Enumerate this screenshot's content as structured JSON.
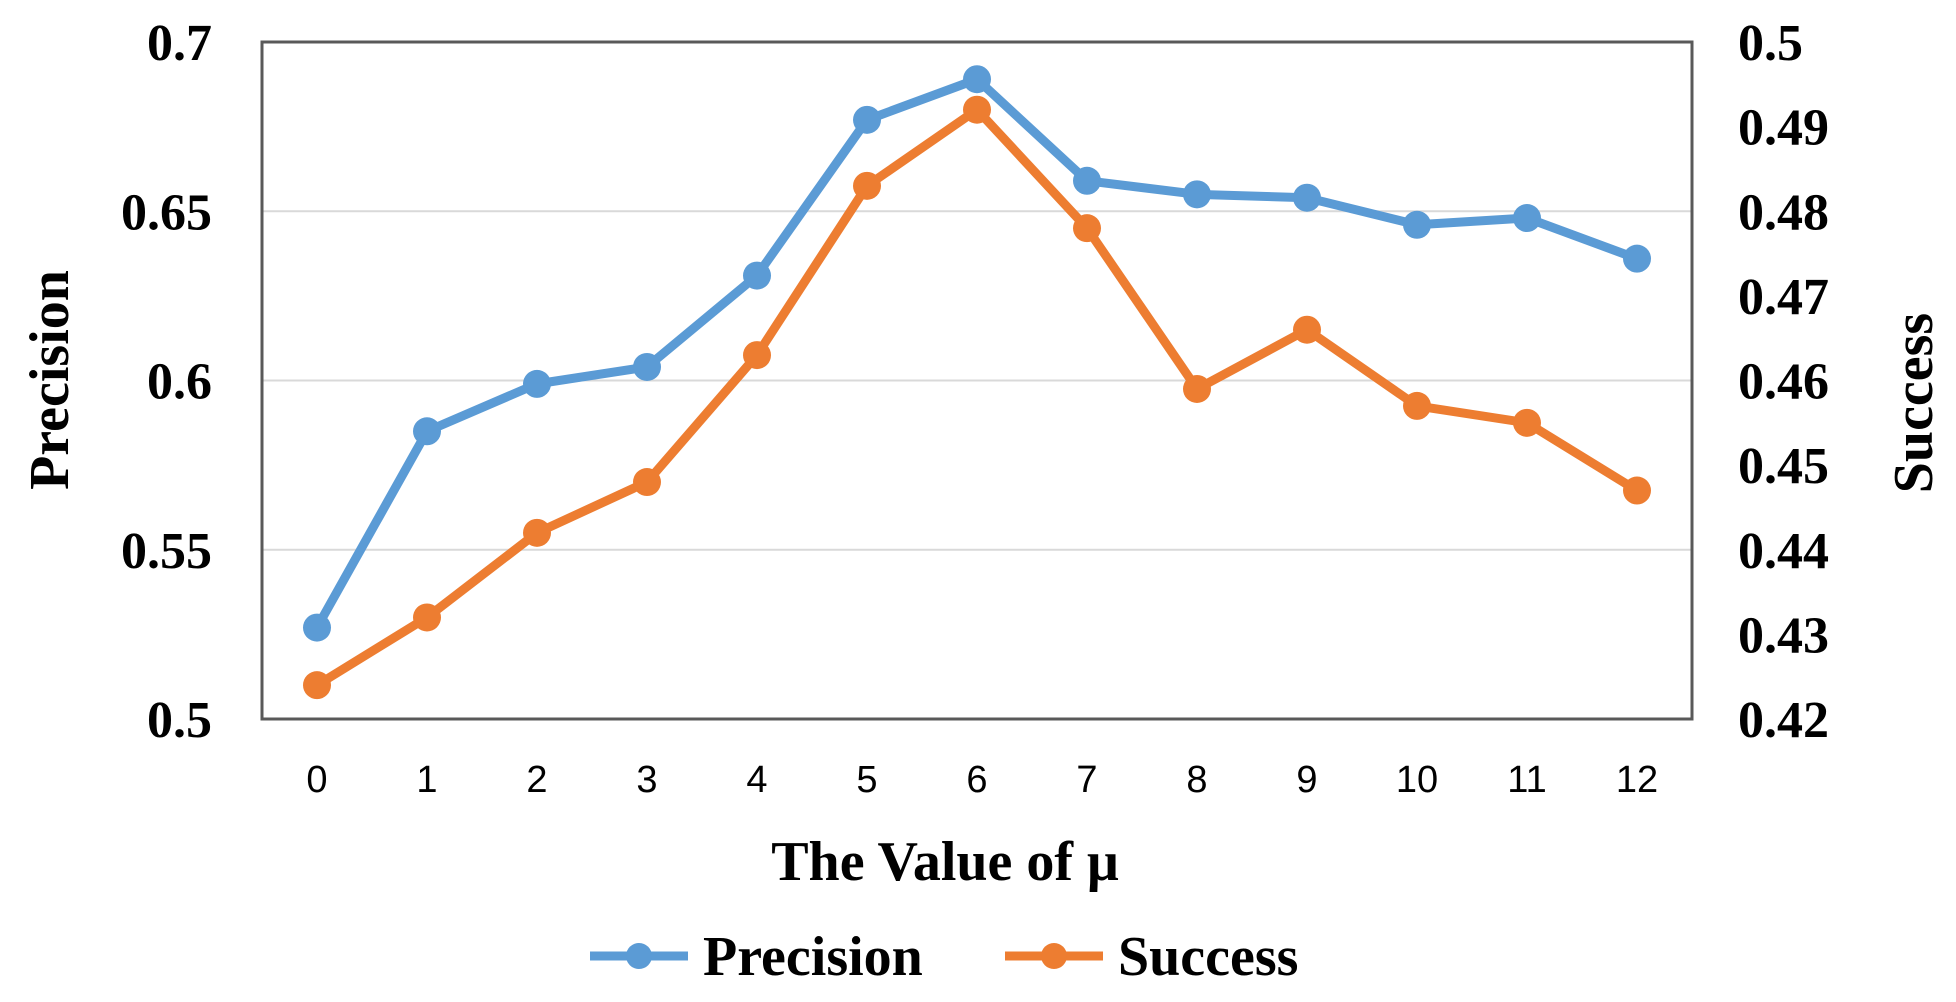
{
  "chart_data": {
    "type": "line",
    "title": "",
    "xlabel": "The Value of μ",
    "ylabel": "Precision",
    "y2label": "Success",
    "categories": [
      "0",
      "1",
      "2",
      "3",
      "4",
      "5",
      "6",
      "7",
      "8",
      "9",
      "10",
      "11",
      "12"
    ],
    "ylim": [
      0.5,
      0.7
    ],
    "y2lim": [
      0.42,
      0.5
    ],
    "yticks": [
      "0.5",
      "0.55",
      "0.6",
      "0.65",
      "0.7"
    ],
    "y2ticks": [
      "0.42",
      "0.43",
      "0.44",
      "0.45",
      "0.46",
      "0.47",
      "0.48",
      "0.49",
      "0.5"
    ],
    "grid": true,
    "legend_position": "bottom",
    "series": [
      {
        "name": "Precision",
        "axis": "left",
        "color": "#5B9BD5",
        "values": [
          0.527,
          0.585,
          0.599,
          0.604,
          0.631,
          0.677,
          0.689,
          0.659,
          0.655,
          0.654,
          0.646,
          0.648,
          0.636
        ]
      },
      {
        "name": "Success",
        "axis": "right",
        "color": "#ED7D31",
        "values": [
          0.424,
          0.432,
          0.442,
          0.448,
          0.463,
          0.483,
          0.492,
          0.478,
          0.459,
          0.466,
          0.457,
          0.455,
          0.447
        ]
      }
    ]
  }
}
